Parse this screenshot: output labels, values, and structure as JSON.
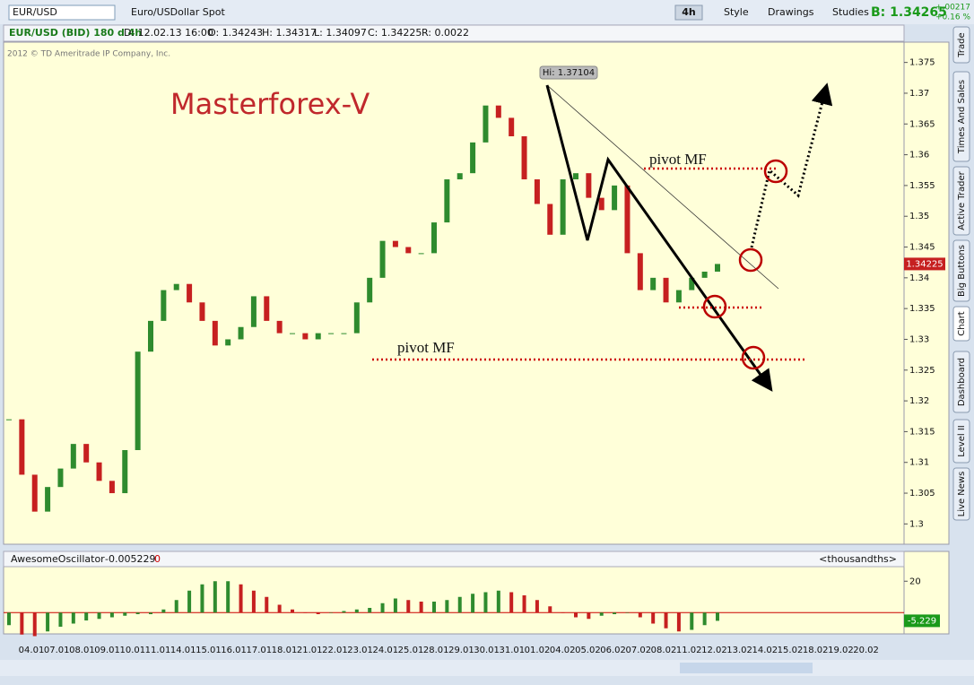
{
  "toolbar": {
    "symbol": "EUR/USD",
    "description": "Euro/USDollar Spot",
    "interval": "4h",
    "buttons": [
      "Style",
      "Drawings",
      "Studies"
    ],
    "bid": "B: 1.34265",
    "change": "+.00217",
    "change_pct": "+0.16 %"
  },
  "info_bar": [
    "EUR/USD (BID) 180 d 4h",
    "D: 12.02.13 16:00",
    "O: 1.34243",
    "H: 1.34317",
    "L: 1.34097",
    "C: 1.34225",
    "R: 0.0022"
  ],
  "chart_data": [
    {
      "type": "candlestick",
      "closes": [
        1.317,
        1.308,
        1.302,
        1.306,
        1.309,
        1.313,
        1.31,
        1.307,
        1.305,
        1.312,
        1.328,
        1.333,
        1.338,
        1.339,
        1.336,
        1.333,
        1.329,
        1.33,
        1.332,
        1.337,
        1.333,
        1.331,
        1.331,
        1.33,
        1.331,
        1.331,
        1.331,
        1.336,
        1.34,
        1.346,
        1.345,
        1.344,
        1.344,
        1.349,
        1.356,
        1.357,
        1.362,
        1.368,
        1.366,
        1.363,
        1.356,
        1.352,
        1.347,
        1.356,
        1.357,
        1.353,
        1.351,
        1.355,
        1.344,
        1.338,
        1.34,
        1.336,
        1.338,
        1.34,
        1.341,
        1.34225
      ],
      "up_color": "#2e8b2e",
      "down_color": "#c62020",
      "ylim": [
        1.2967,
        1.3783
      ],
      "yticks": [
        1.3,
        1.305,
        1.31,
        1.315,
        1.32,
        1.325,
        1.33,
        1.335,
        1.34,
        1.345,
        1.35,
        1.355,
        1.36,
        1.365,
        1.37,
        1.375
      ],
      "last_price": {
        "value": 1.34225,
        "label": "1.34225"
      },
      "copyright": "2012 © TD Ameritrade IP Company, Inc.",
      "watermark": "Masterforex-V",
      "high_label": "Hi: 1.37104",
      "pivot_labels": [
        "pivot MF",
        "pivot MF"
      ]
    },
    {
      "type": "bar",
      "title": "AwesomeOscillator",
      "study_value": "-0.005229",
      "offset": "0",
      "units": "<thousandths>",
      "values": [
        -8,
        -14,
        -15,
        -12,
        -9,
        -7,
        -5,
        -4,
        -3,
        -2,
        -1,
        -1,
        2,
        8,
        14,
        18,
        20,
        20,
        18,
        14,
        10,
        5,
        2,
        0,
        -1,
        0,
        1,
        2,
        3,
        6,
        9,
        8,
        7,
        7,
        8,
        10,
        12,
        13,
        14,
        13,
        11,
        8,
        4,
        0,
        -3,
        -4,
        -2,
        -1,
        0,
        -3,
        -7,
        -10,
        -12,
        -11,
        -8,
        -5.229
      ],
      "up_color": "#2e8b2e",
      "down_color": "#c62020",
      "zero_color": "#cc0000",
      "ylim": [
        -13,
        27
      ],
      "yticks": [
        20
      ],
      "last_value": {
        "value": -5.229,
        "label": "-5.229"
      }
    }
  ],
  "date_axis": [
    "04.01",
    "07.01",
    "08.01",
    "09.01",
    "10.01",
    "11.01",
    "14.01",
    "15.01",
    "16.01",
    "17.01",
    "18.01",
    "21.01",
    "22.01",
    "23.01",
    "24.01",
    "25.01",
    "28.01",
    "29.01",
    "30.01",
    "31.01",
    "01.02",
    "04.02",
    "05.02",
    "06.02",
    "07.02",
    "08.02",
    "11.02",
    "12.02",
    "13.02",
    "14.02",
    "15.02",
    "18.02",
    "19.02",
    "20.02"
  ],
  "side_tabs": [
    "Trade",
    "Times And Sales",
    "Active Trader",
    "Big Buttons",
    "Chart",
    "Dashboard",
    "Level II",
    "Live News"
  ]
}
